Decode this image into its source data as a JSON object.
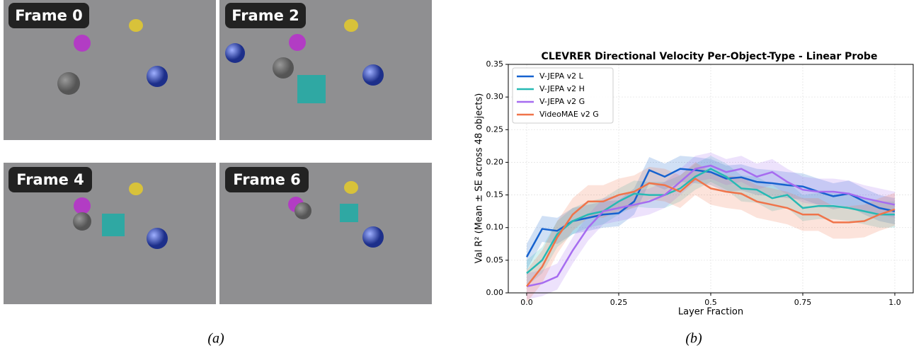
{
  "frames": [
    {
      "label": "Frame 0"
    },
    {
      "label": "Frame 2"
    },
    {
      "label": "Frame 4"
    },
    {
      "label": "Frame 6"
    }
  ],
  "captions": [
    "(a)",
    "(b)"
  ],
  "chart_data": {
    "type": "line",
    "title": "CLEVRER Directional Velocity Per-Object-Type - Linear Probe",
    "x_label": "Layer Fraction",
    "y_label": "Val R² (Mean ± SE across 48 objects)",
    "x": [
      0,
      0.042,
      0.083,
      0.125,
      0.167,
      0.208,
      0.25,
      0.292,
      0.333,
      0.375,
      0.417,
      0.458,
      0.5,
      0.542,
      0.583,
      0.625,
      0.667,
      0.708,
      0.75,
      0.792,
      0.833,
      0.875,
      0.917,
      0.958,
      1.0
    ],
    "series": [
      {
        "name": "V-JEPA v2 L",
        "color": "#1662cf",
        "se": 0.02,
        "values": [
          0.055,
          0.098,
          0.095,
          0.11,
          0.115,
          0.12,
          0.122,
          0.14,
          0.188,
          0.178,
          0.19,
          0.188,
          0.185,
          0.175,
          0.177,
          0.17,
          0.168,
          0.165,
          0.163,
          0.155,
          0.148,
          0.152,
          0.14,
          0.13,
          0.125
        ]
      },
      {
        "name": "V-JEPA v2 H",
        "color": "#27b9b4",
        "se": 0.02,
        "values": [
          0.03,
          0.05,
          0.09,
          0.11,
          0.12,
          0.125,
          0.14,
          0.152,
          0.15,
          0.15,
          0.16,
          0.178,
          0.19,
          0.178,
          0.16,
          0.158,
          0.145,
          0.15,
          0.13,
          0.133,
          0.133,
          0.13,
          0.125,
          0.12,
          0.12
        ]
      },
      {
        "name": "V-JEPA v2 G",
        "color": "#a66cf0",
        "se": 0.02,
        "values": [
          0.01,
          0.015,
          0.025,
          0.065,
          0.1,
          0.125,
          0.13,
          0.135,
          0.14,
          0.15,
          0.17,
          0.19,
          0.195,
          0.185,
          0.19,
          0.178,
          0.185,
          0.17,
          0.158,
          0.155,
          0.155,
          0.152,
          0.145,
          0.14,
          0.135
        ]
      },
      {
        "name": "VideoMAE v2 G",
        "color": "#f0744a",
        "se": 0.025,
        "values": [
          0.01,
          0.04,
          0.085,
          0.12,
          0.14,
          0.14,
          0.15,
          0.155,
          0.168,
          0.165,
          0.155,
          0.175,
          0.16,
          0.155,
          0.152,
          0.14,
          0.135,
          0.13,
          0.12,
          0.12,
          0.108,
          0.108,
          0.11,
          0.12,
          0.128
        ]
      }
    ],
    "xlim": [
      -0.05,
      1.05
    ],
    "ylim": [
      0,
      0.35
    ],
    "xticks": [
      {
        "value": 0,
        "label": "0.0"
      },
      0.25,
      0.5,
      0.75,
      {
        "value": 1,
        "label": "1.0"
      }
    ],
    "yticks": [
      {
        "value": 0,
        "label": "0.00"
      },
      0.05,
      {
        "value": 0.1,
        "label": "0.10"
      },
      0.15,
      {
        "value": 0.2,
        "label": "0.20"
      },
      0.25,
      {
        "value": 0.3,
        "label": "0.30"
      },
      0.35
    ],
    "grid": true,
    "legend": "upper-left"
  }
}
